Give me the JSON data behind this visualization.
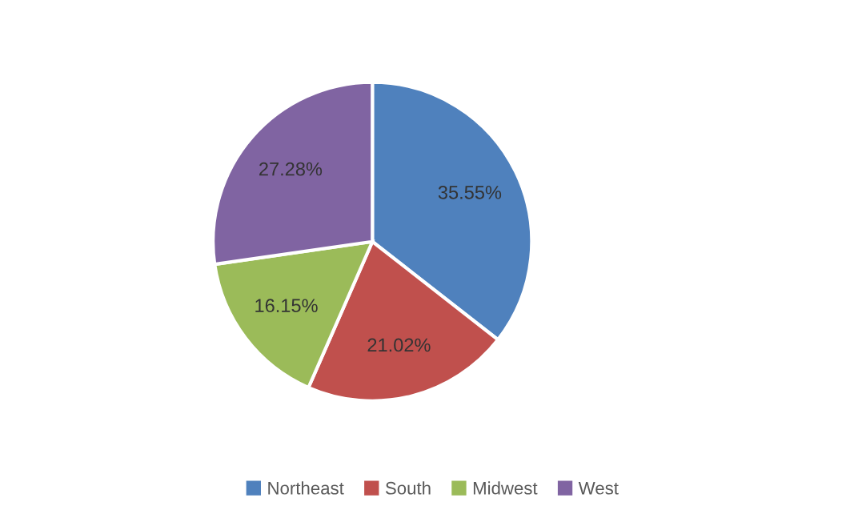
{
  "chart_data": {
    "type": "pie",
    "categories": [
      "Northeast",
      "South",
      "Midwest",
      "West"
    ],
    "values": [
      35.55,
      21.02,
      16.15,
      27.28
    ],
    "colors": [
      "#4f81bd",
      "#c0504d",
      "#9bbb59",
      "#8064a2"
    ],
    "value_labels": [
      "35.55%",
      "21.02%",
      "16.15%",
      "27.28%"
    ],
    "legend": "bottom"
  }
}
